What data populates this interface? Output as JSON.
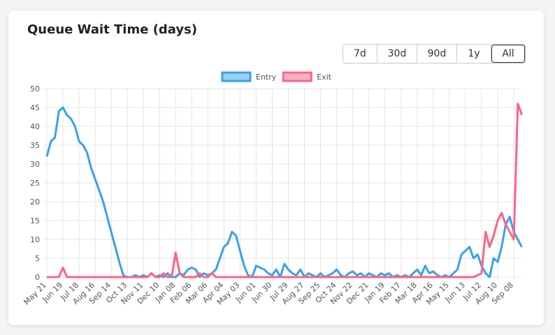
{
  "chart_data": {
    "type": "line",
    "title": "Queue Wait Time (days)",
    "buttons": [
      "7d",
      "30d",
      "90d",
      "1y",
      "All"
    ],
    "active_button": 4,
    "categories": [
      "May 21",
      null,
      null,
      null,
      "Jun 19",
      null,
      null,
      null,
      "Jul 18",
      null,
      null,
      null,
      "Aug 16",
      null,
      null,
      null,
      "Sep 14",
      null,
      null,
      null,
      "Oct 13",
      null,
      null,
      null,
      "Nov 11",
      null,
      null,
      null,
      "Dec 10",
      null,
      null,
      null,
      "Jan 08",
      null,
      null,
      null,
      "Feb 06",
      null,
      null,
      null,
      "Mar 06",
      null,
      null,
      null,
      "Apr 04",
      null,
      null,
      null,
      "May 03",
      null,
      null,
      null,
      "Jun 01",
      null,
      null,
      null,
      "Jun 30",
      null,
      null,
      null,
      "Jul 29",
      null,
      null,
      null,
      "Aug 27",
      null,
      null,
      null,
      "Sep 25",
      null,
      null,
      null,
      "Oct 24",
      null,
      null,
      null,
      "Nov 22",
      null,
      null,
      null,
      "Dec 21",
      null,
      null,
      null,
      "Jan 19",
      null,
      null,
      null,
      "Feb 17",
      null,
      null,
      null,
      "Mar 18",
      null,
      null,
      null,
      "Apr 16",
      null,
      null,
      null,
      "May 15",
      null,
      null,
      null,
      "Jun 13",
      null,
      null,
      null,
      "Jul 12",
      null,
      null,
      null,
      "Aug 10",
      null,
      null,
      null,
      "Sep 08",
      null,
      null
    ],
    "series": [
      {
        "name": "Entry",
        "color": "#36a2eb",
        "values": [
          32,
          36,
          37,
          44,
          45,
          43,
          42,
          40,
          36,
          35,
          33,
          29,
          26,
          23,
          20,
          16,
          12,
          8,
          4,
          0.5,
          0,
          0,
          0.5,
          0,
          0.5,
          0,
          1,
          0,
          0.5,
          0,
          1,
          0,
          0,
          1,
          0.5,
          2,
          2.5,
          2,
          0,
          1,
          0.5,
          1,
          2,
          5,
          8,
          9,
          12,
          11,
          7,
          3,
          0.5,
          0,
          3,
          2.5,
          2,
          1,
          0.5,
          2,
          0,
          3.5,
          2,
          1,
          0.5,
          2,
          0,
          1,
          0.5,
          0,
          1,
          0,
          0.5,
          1,
          2,
          0.5,
          0,
          1,
          1.5,
          0.5,
          1,
          0,
          1,
          0.5,
          0,
          1,
          0.5,
          1,
          0,
          0.5,
          0,
          0.5,
          0,
          1,
          2,
          0.5,
          3,
          1,
          1.5,
          0.5,
          0,
          0.5,
          0,
          1,
          2,
          6,
          7,
          8,
          5,
          6,
          3,
          1,
          0,
          5,
          4,
          8,
          14,
          16,
          12,
          10,
          8
        ]
      },
      {
        "name": "Exit",
        "color": "#ff6384",
        "values": [
          0,
          0,
          0,
          0,
          2.5,
          0,
          0,
          0,
          0,
          0,
          0,
          0,
          0,
          0,
          0,
          0,
          0,
          0,
          0,
          0,
          0,
          0,
          0,
          0,
          0,
          0,
          1,
          0,
          0,
          1,
          0,
          0,
          6.5,
          1,
          0,
          0,
          0,
          0,
          1,
          0,
          0,
          1,
          0,
          0,
          0,
          0,
          0,
          0,
          0,
          0,
          0,
          0,
          0,
          0,
          0,
          0,
          0,
          0,
          0,
          0,
          0,
          0,
          0,
          0,
          0,
          0,
          0,
          0,
          0,
          0,
          0,
          0,
          0,
          0,
          0,
          0,
          0,
          0,
          0,
          0,
          0,
          0,
          0,
          0,
          0,
          0,
          0,
          0,
          0,
          0,
          0,
          0,
          0,
          0,
          0,
          0,
          0,
          0,
          0,
          0,
          0,
          0,
          0,
          0,
          0,
          0,
          0,
          0.5,
          1,
          12,
          8,
          11,
          15,
          17,
          14,
          12,
          10,
          46,
          43
        ]
      }
    ],
    "ylim": [
      0,
      50
    ],
    "yticks": [
      0,
      5,
      10,
      15,
      20,
      25,
      30,
      35,
      40,
      45,
      50
    ],
    "grid": true
  }
}
